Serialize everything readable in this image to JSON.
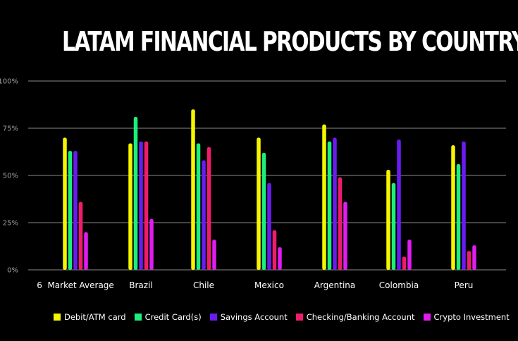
{
  "chart_data": {
    "type": "bar",
    "title": "LATAM FINANCIAL PRODUCTS BY COUNTRY",
    "categories": [
      "6  Market Average",
      "Brazil",
      "Chile",
      "Mexico",
      "Argentina",
      "Colombia",
      "Peru"
    ],
    "y_ticks": [
      "0%",
      "25%",
      "50%",
      "75%",
      "100%"
    ],
    "ylim": [
      0,
      100
    ],
    "grid": true,
    "legend_position": "bottom",
    "series": [
      {
        "name": "Debit/ATM card",
        "color": "#f5f500",
        "values": [
          70,
          67,
          85,
          70,
          77,
          53,
          66
        ]
      },
      {
        "name": "Credit Card(s)",
        "color": "#1cf07a",
        "values": [
          63,
          81,
          67,
          62,
          68,
          46,
          56
        ]
      },
      {
        "name": "Savings Account",
        "color": "#6a1cf0",
        "values": [
          63,
          68,
          58,
          46,
          70,
          69,
          68
        ]
      },
      {
        "name": "Checking/Banking Account",
        "color": "#f01c6a",
        "values": [
          36,
          68,
          65,
          21,
          49,
          7,
          10
        ]
      },
      {
        "name": "Crypto Investment",
        "color": "#e01cf0",
        "values": [
          20,
          27,
          16,
          12,
          36,
          16,
          13
        ]
      }
    ]
  }
}
